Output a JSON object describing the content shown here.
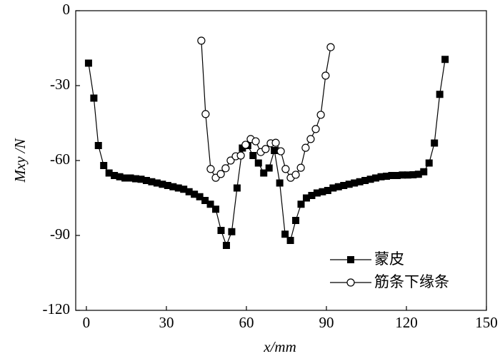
{
  "chart_data": {
    "type": "line",
    "xlabel": "x/mm",
    "ylabel": "Mxy /N",
    "xlim": [
      -4,
      150
    ],
    "xticks": [
      0,
      30,
      60,
      90,
      120,
      150
    ],
    "ylim": [
      -120,
      0
    ],
    "yticks": [
      -120,
      -90,
      -60,
      -30,
      0
    ],
    "legend": "lower right",
    "series": [
      {
        "name": "蒙皮",
        "color": "#000000",
        "marker": "square",
        "x": [
          0.8,
          2.8,
          4.5,
          6.5,
          8.5,
          10.5,
          12.5,
          14.5,
          16.5,
          18.5,
          20.5,
          22.5,
          24.5,
          26.5,
          28.5,
          30.5,
          32.5,
          34.5,
          36.5,
          38.5,
          40.5,
          42.5,
          44.5,
          46.5,
          48.5,
          50.5,
          52.5,
          54.5,
          56.5,
          58.5,
          60.5,
          62.5,
          64.5,
          66.5,
          68.5,
          70.5,
          72.5,
          74.5,
          76.5,
          78.5,
          80.5,
          82.5,
          84.5,
          86.5,
          88.5,
          90.5,
          92.5,
          94.5,
          96.5,
          98.5,
          100.5,
          102.5,
          104.5,
          106.5,
          108.5,
          110.5,
          112.5,
          114.5,
          116.5,
          118.5,
          120.5,
          122.5,
          124.5,
          126.5,
          128.5,
          130.5,
          132.5,
          134.5
        ],
        "values": [
          -21,
          -35,
          -54,
          -62,
          -65,
          -66,
          -66.5,
          -67,
          -67,
          -67.3,
          -67.5,
          -68,
          -68.5,
          -69,
          -69.5,
          -70,
          -70.5,
          -71,
          -71.5,
          -72.5,
          -73.5,
          -74.5,
          -76,
          -77.5,
          -79.5,
          -88,
          -94,
          -88.5,
          -71,
          -55,
          -54,
          -58,
          -61,
          -65,
          -63,
          -56,
          -69,
          -89.5,
          -92,
          -84,
          -77.5,
          -75,
          -74,
          -73,
          -72.5,
          -72,
          -71,
          -70.5,
          -70,
          -69.5,
          -69,
          -68.5,
          -68,
          -67.5,
          -67,
          -66.5,
          -66.3,
          -66,
          -66,
          -65.8,
          -65.8,
          -65.7,
          -65.5,
          -64.5,
          -61,
          -53,
          -33.5,
          -19.5
        ]
      },
      {
        "name": "筋条下缘条",
        "color": "#000000",
        "marker": "circle",
        "x": [
          43.1,
          44.7,
          46.6,
          48.5,
          50.4,
          52.2,
          54.1,
          56,
          57.9,
          59.7,
          61.6,
          63.5,
          65.4,
          67.2,
          69.1,
          71,
          72.9,
          74.7,
          76.6,
          78.5,
          80.4,
          82.2,
          84.1,
          86,
          87.9,
          89.7,
          91.6
        ],
        "values": [
          -12,
          -41.4,
          -63.4,
          -66.9,
          -65.4,
          -63.1,
          -60,
          -58.3,
          -58,
          -53.7,
          -51.4,
          -52.3,
          -56.6,
          -55.4,
          -53.1,
          -52.9,
          -56.3,
          -63.4,
          -66.9,
          -65.7,
          -62.9,
          -54.9,
          -51.4,
          -47.4,
          -41.7,
          -26,
          -14.6
        ]
      }
    ]
  }
}
